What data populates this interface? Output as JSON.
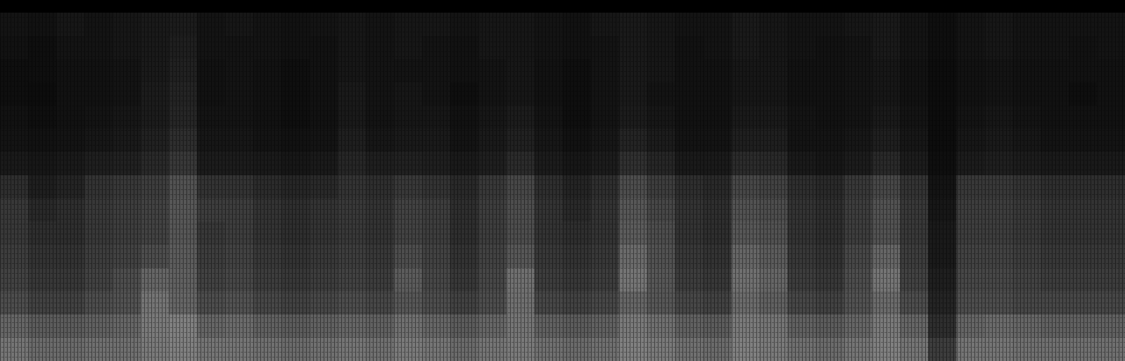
{
  "chart_data": {
    "type": "heatmap",
    "tick_labels": false,
    "color": "#ffffff",
    "zlim": [
      0,
      100
    ],
    "cells": [
      [
        8,
        7,
        9,
        8,
        9,
        10,
        11,
        8,
        9,
        8,
        7,
        8,
        9,
        8,
        9,
        9,
        8,
        9,
        9,
        8,
        7,
        9,
        10,
        9,
        8,
        8,
        10,
        9,
        8,
        8,
        9,
        10,
        8,
        6,
        8,
        9,
        8,
        8,
        8,
        8
      ],
      [
        7,
        6,
        8,
        8,
        9,
        10,
        12,
        8,
        8,
        8,
        7,
        7,
        9,
        8,
        9,
        8,
        7,
        9,
        9,
        8,
        7,
        8,
        10,
        9,
        7,
        8,
        10,
        9,
        8,
        7,
        8,
        10,
        8,
        6,
        8,
        9,
        8,
        8,
        7,
        8
      ],
      [
        6,
        6,
        7,
        7,
        8,
        10,
        13,
        7,
        8,
        7,
        6,
        7,
        9,
        8,
        8,
        8,
        7,
        8,
        9,
        7,
        6,
        8,
        10,
        9,
        7,
        7,
        9,
        9,
        7,
        7,
        8,
        9,
        7,
        5,
        7,
        8,
        7,
        7,
        7,
        7
      ],
      [
        6,
        5,
        7,
        7,
        8,
        11,
        14,
        7,
        8,
        7,
        6,
        7,
        10,
        8,
        9,
        8,
        6,
        8,
        9,
        7,
        6,
        8,
        10,
        8,
        7,
        7,
        9,
        9,
        7,
        7,
        8,
        9,
        7,
        5,
        7,
        8,
        7,
        7,
        6,
        7
      ],
      [
        7,
        6,
        7,
        8,
        9,
        11,
        15,
        8,
        8,
        7,
        6,
        7,
        10,
        8,
        9,
        9,
        7,
        9,
        11,
        8,
        6,
        8,
        11,
        9,
        7,
        7,
        10,
        10,
        8,
        7,
        8,
        10,
        8,
        5,
        8,
        9,
        8,
        7,
        7,
        7
      ],
      [
        8,
        7,
        8,
        9,
        10,
        13,
        18,
        9,
        9,
        8,
        7,
        8,
        12,
        9,
        10,
        10,
        8,
        10,
        13,
        9,
        7,
        9,
        14,
        11,
        8,
        8,
        12,
        12,
        8,
        8,
        9,
        12,
        9,
        5,
        9,
        10,
        9,
        8,
        8,
        8
      ],
      [
        10,
        9,
        10,
        12,
        13,
        16,
        22,
        11,
        11,
        10,
        9,
        10,
        15,
        12,
        13,
        12,
        10,
        12,
        17,
        11,
        9,
        11,
        19,
        15,
        10,
        10,
        17,
        16,
        10,
        9,
        11,
        16,
        11,
        6,
        11,
        12,
        11,
        10,
        10,
        10
      ],
      [
        18,
        12,
        14,
        20,
        22,
        24,
        32,
        20,
        20,
        17,
        15,
        16,
        20,
        18,
        22,
        20,
        16,
        22,
        28,
        18,
        14,
        18,
        30,
        24,
        18,
        16,
        28,
        26,
        18,
        16,
        22,
        28,
        20,
        8,
        22,
        22,
        20,
        18,
        18,
        18
      ],
      [
        22,
        16,
        18,
        22,
        24,
        26,
        34,
        24,
        24,
        20,
        18,
        20,
        22,
        20,
        26,
        24,
        18,
        24,
        30,
        20,
        16,
        20,
        34,
        28,
        20,
        18,
        32,
        30,
        20,
        18,
        24,
        32,
        22,
        9,
        24,
        24,
        22,
        20,
        20,
        20
      ],
      [
        22,
        18,
        18,
        22,
        24,
        26,
        34,
        22,
        24,
        20,
        18,
        20,
        22,
        20,
        26,
        24,
        18,
        24,
        30,
        20,
        18,
        20,
        36,
        30,
        20,
        18,
        34,
        32,
        20,
        18,
        24,
        32,
        22,
        10,
        24,
        24,
        22,
        20,
        20,
        20
      ],
      [
        24,
        20,
        20,
        24,
        26,
        30,
        36,
        24,
        26,
        22,
        20,
        22,
        24,
        22,
        30,
        26,
        20,
        26,
        34,
        22,
        20,
        22,
        42,
        32,
        22,
        20,
        40,
        36,
        22,
        20,
        28,
        40,
        24,
        10,
        26,
        26,
        24,
        22,
        22,
        22
      ],
      [
        26,
        22,
        22,
        26,
        30,
        40,
        38,
        26,
        28,
        24,
        22,
        24,
        26,
        24,
        36,
        28,
        22,
        28,
        44,
        24,
        22,
        24,
        46,
        34,
        24,
        22,
        44,
        40,
        24,
        22,
        30,
        46,
        26,
        12,
        28,
        28,
        26,
        24,
        24,
        24
      ],
      [
        30,
        26,
        26,
        30,
        32,
        46,
        40,
        30,
        32,
        28,
        26,
        28,
        30,
        28,
        34,
        30,
        26,
        30,
        44,
        28,
        26,
        28,
        40,
        34,
        28,
        26,
        42,
        38,
        28,
        26,
        32,
        42,
        30,
        14,
        30,
        30,
        28,
        28,
        28,
        28
      ],
      [
        40,
        36,
        36,
        38,
        40,
        48,
        50,
        40,
        42,
        38,
        36,
        38,
        40,
        38,
        44,
        40,
        36,
        40,
        46,
        38,
        36,
        38,
        48,
        44,
        38,
        36,
        48,
        46,
        38,
        36,
        40,
        48,
        40,
        18,
        40,
        42,
        40,
        38,
        38,
        38
      ],
      [
        46,
        42,
        42,
        44,
        44,
        48,
        50,
        46,
        46,
        44,
        42,
        44,
        46,
        44,
        48,
        46,
        42,
        46,
        48,
        44,
        42,
        44,
        50,
        48,
        44,
        42,
        50,
        48,
        44,
        42,
        46,
        50,
        46,
        24,
        46,
        46,
        44,
        44,
        44,
        44
      ]
    ]
  }
}
